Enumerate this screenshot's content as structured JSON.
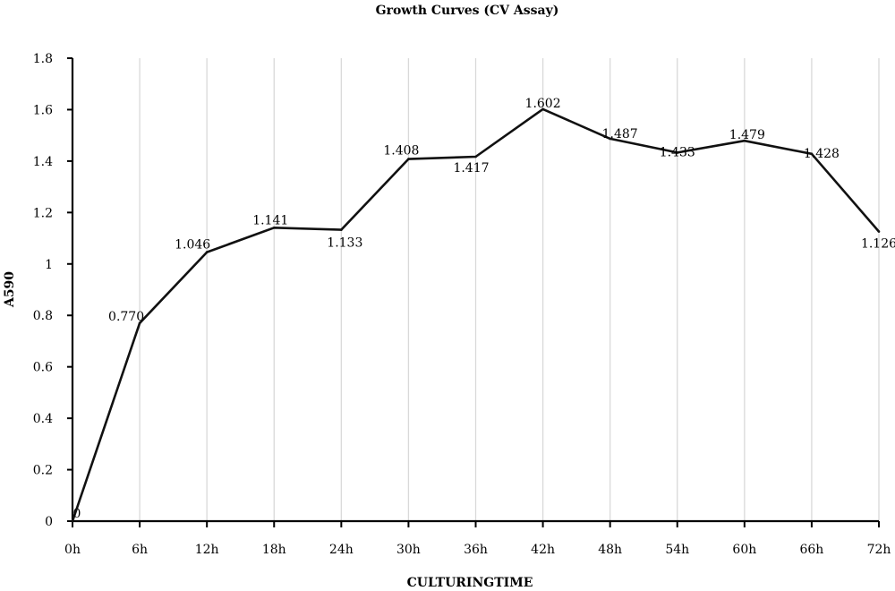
{
  "chart_data": {
    "type": "line",
    "title": "Growth Curves (CV Assay)",
    "xlabel": "CULTURINGTIME",
    "ylabel": "A590",
    "categories": [
      "0h",
      "6h",
      "12h",
      "18h",
      "24h",
      "30h",
      "36h",
      "42h",
      "48h",
      "54h",
      "60h",
      "66h",
      "72h"
    ],
    "series": [
      {
        "values": [
          0,
          0.77,
          1.046,
          1.141,
          1.133,
          1.408,
          1.417,
          1.602,
          1.487,
          1.433,
          1.479,
          1.428,
          1.126
        ]
      }
    ],
    "data_labels": [
      "0",
      "0.770",
      "1.046",
      "1.141",
      "1.133",
      "1.408",
      "1.417",
      "1.602",
      "1.487",
      "1.433",
      "1.479",
      "1.428",
      "1.126"
    ],
    "yticks": [
      "0",
      "0.2",
      "0.4",
      "0.6",
      "0.8",
      "1",
      "1.2",
      "1.4",
      "1.6",
      "1.8"
    ],
    "ylim": [
      0,
      1.8
    ],
    "grid": "vertical",
    "legend": "none",
    "colors": {
      "line": "#111111",
      "grid": "#d9d9d9",
      "axis": "#000000"
    }
  }
}
